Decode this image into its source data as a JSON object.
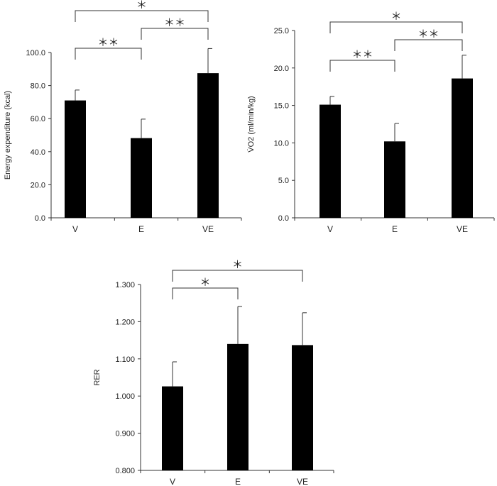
{
  "chart_data": [
    {
      "id": "energy",
      "type": "bar",
      "ylabel": "Energy expenditure (kcal)",
      "categories": [
        "V",
        "E",
        "VE"
      ],
      "values": [
        71.0,
        48.2,
        87.5
      ],
      "errors": [
        6.3,
        11.5,
        14.9
      ],
      "ylim": [
        0,
        100
      ],
      "yticks": [
        "0.0",
        "20.0",
        "40.0",
        "60.0",
        "80.0",
        "100.0"
      ],
      "yticks_values": [
        0,
        20,
        40,
        60,
        80,
        100
      ],
      "brackets": [
        {
          "from": 0,
          "to": 1,
          "label": "＊＊"
        },
        {
          "from": 1,
          "to": 2,
          "label": "＊＊"
        },
        {
          "from": 0,
          "to": 2,
          "label": "＊"
        }
      ]
    },
    {
      "id": "vo2",
      "type": "bar",
      "ylabel": "V̇O2 (ml/min/kg)",
      "categories": [
        "V",
        "E",
        "VE"
      ],
      "values": [
        15.1,
        10.2,
        18.6
      ],
      "errors": [
        1.1,
        2.4,
        3.1
      ],
      "ylim": [
        0,
        25
      ],
      "yticks": [
        "0.0",
        "5.0",
        "10.0",
        "15.0",
        "20.0",
        "25.0"
      ],
      "yticks_values": [
        0,
        5,
        10,
        15,
        20,
        25
      ],
      "brackets": [
        {
          "from": 0,
          "to": 1,
          "label": "＊＊"
        },
        {
          "from": 1,
          "to": 2,
          "label": "＊＊"
        },
        {
          "from": 0,
          "to": 2,
          "label": "＊"
        }
      ]
    },
    {
      "id": "rer",
      "type": "bar",
      "ylabel": "RER",
      "categories": [
        "V",
        "E",
        "VE"
      ],
      "values": [
        1.026,
        1.14,
        1.137
      ],
      "errors": [
        0.066,
        0.101,
        0.087
      ],
      "ylim": [
        0.8,
        1.3
      ],
      "yticks": [
        "0.800",
        "0.900",
        "1.000",
        "1.100",
        "1.200",
        "1.300"
      ],
      "yticks_values": [
        0.8,
        0.9,
        1.0,
        1.1,
        1.2,
        1.3
      ],
      "brackets": [
        {
          "from": 0,
          "to": 1,
          "label": "＊"
        },
        {
          "from": 0,
          "to": 2,
          "label": "＊"
        }
      ]
    }
  ],
  "colors": {
    "bar": "#000000",
    "axis": "#333333"
  }
}
